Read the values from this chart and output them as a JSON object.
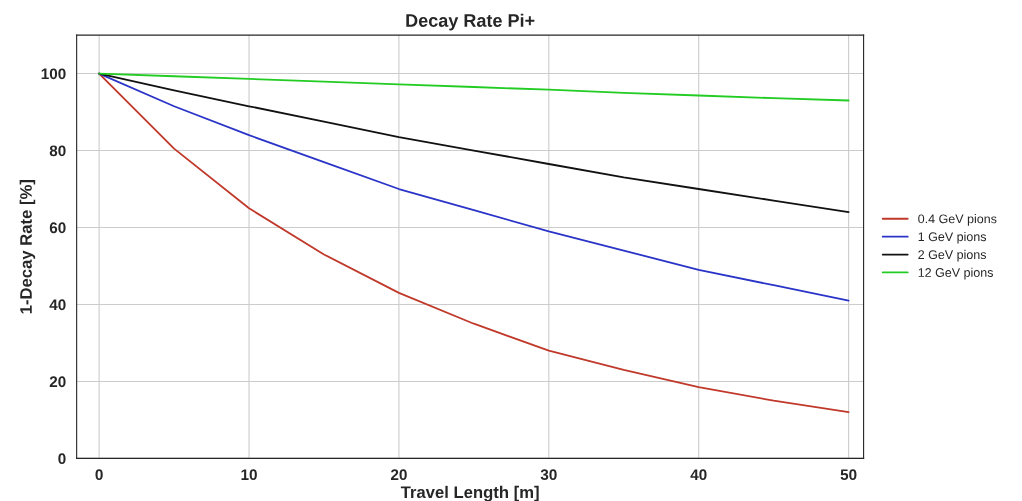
{
  "chart_data": {
    "type": "line",
    "title": "Decay Rate Pi+",
    "xlabel": "Travel Length [m]",
    "ylabel": "1-Decay Rate [%]",
    "x": [
      0,
      5,
      10,
      15,
      20,
      25,
      30,
      35,
      40,
      45,
      50
    ],
    "series": [
      {
        "name": "0.4 GeV pions",
        "color": "#c0392b",
        "values": [
          100,
          80.5,
          65,
          53,
          43,
          35,
          28,
          23,
          18.5,
          15,
          12
        ]
      },
      {
        "name": "1 GeV pions",
        "color": "#2a35c8",
        "values": [
          100,
          91.5,
          84,
          77,
          70,
          64.5,
          59,
          54,
          49,
          45,
          41
        ]
      },
      {
        "name": "2 GeV pions",
        "color": "#111111",
        "values": [
          100,
          95.6,
          91.5,
          87.5,
          83.5,
          80,
          76.5,
          73,
          70,
          67,
          64
        ]
      },
      {
        "name": "12 GeV pions",
        "color": "#22cc22",
        "values": [
          100,
          99.3,
          98.6,
          97.9,
          97.2,
          96.5,
          95.8,
          95,
          94.3,
          93.6,
          93
        ]
      }
    ],
    "xlim": [
      -1.5,
      51
    ],
    "xticks": [
      0,
      10,
      20,
      30,
      40,
      50
    ],
    "ylim": [
      0,
      110
    ],
    "yticks": [
      0,
      20,
      40,
      60,
      80,
      100
    ],
    "grid": true,
    "legend": "right"
  }
}
